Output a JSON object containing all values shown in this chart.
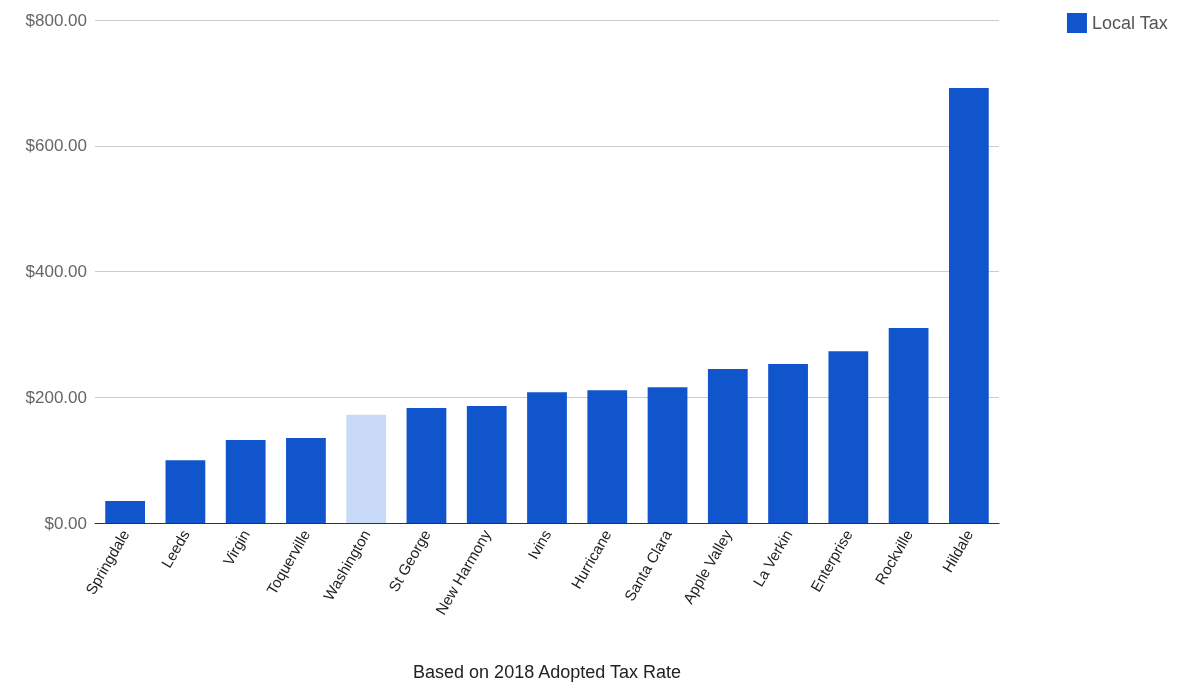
{
  "chart_data": {
    "type": "bar",
    "xlabel": "Based on 2018 Adopted Tax Rate",
    "categories": [
      "Springdale",
      "Leeds",
      "Virgin",
      "Toquerville",
      "Washington",
      "St George",
      "New Harmony",
      "Ivins",
      "Hurricane",
      "Santa Clara",
      "Apple Valley",
      "La Verkin",
      "Enterprise",
      "Rockville",
      "Hildale"
    ],
    "series": [
      {
        "name": "Local Tax",
        "color": "#1155cc",
        "colors": [
          "#1155cc",
          "#1155cc",
          "#1155cc",
          "#1155cc",
          "#c9daf8",
          "#1155cc",
          "#1155cc",
          "#1155cc",
          "#1155cc",
          "#1155cc",
          "#1155cc",
          "#1155cc",
          "#1155cc",
          "#1155cc",
          "#1155cc"
        ],
        "values": [
          35,
          100,
          132,
          135,
          172,
          183,
          186,
          208,
          211,
          216,
          245,
          253,
          273,
          310,
          692
        ]
      }
    ],
    "ylim": [
      0,
      800
    ],
    "yticks": [
      {
        "value": 0,
        "label": "$0.00"
      },
      {
        "value": 200,
        "label": "$200.00"
      },
      {
        "value": 400,
        "label": "$400.00"
      },
      {
        "value": 600,
        "label": "$600.00"
      },
      {
        "value": 800,
        "label": "$800.00"
      }
    ],
    "grid": "y",
    "legend": "top right"
  }
}
